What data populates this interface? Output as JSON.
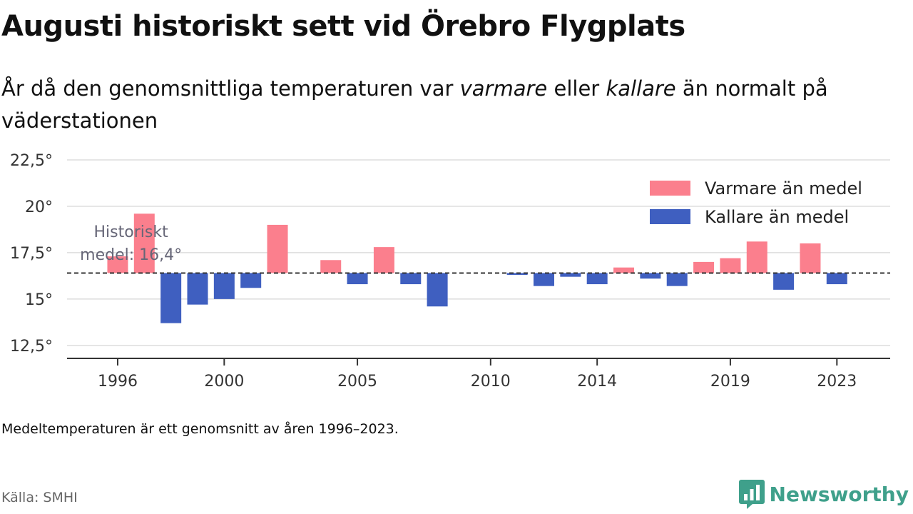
{
  "title": "Augusti historiskt sett vid Örebro Flygplats",
  "subtitle": {
    "part1": "År då den genomsnittliga temperaturen var ",
    "warm_word": "varmare",
    "part2": " eller ",
    "cold_word": "kallare",
    "part3": " än normalt på väderstationen"
  },
  "note": "Medeltemperaturen är ett genomsnitt av åren 1996–2023.",
  "source": "Källa: SMHI",
  "brand": {
    "name": "Newsworthy",
    "color": "#3fa08b",
    "icon": "newsworthy-logo-icon"
  },
  "colors": {
    "warm": "#fb7f8d",
    "cold": "#3f5fc0",
    "grid": "#dddddd",
    "axis": "#333333",
    "mean_line": "#333333"
  },
  "chart_data": {
    "type": "bar",
    "baseline": 16.4,
    "mean_label_line1": "Historiskt",
    "mean_label_line2": "medel: 16,4°",
    "ylim": [
      11.8,
      22.5
    ],
    "yticks": [
      12.5,
      15,
      17.5,
      20,
      22.5
    ],
    "ytick_labels": [
      "12,5°",
      "15°",
      "17,5°",
      "20°",
      "22,5°"
    ],
    "xlim": [
      1994.1,
      2025.0
    ],
    "xticks": [
      1996,
      2000,
      2005,
      2010,
      2014,
      2019,
      2023
    ],
    "xtick_labels": [
      "1996",
      "2000",
      "2005",
      "2010",
      "2014",
      "2019",
      "2023"
    ],
    "legend": {
      "position": "top-right",
      "warm_label": "Varmare än medel",
      "cold_label": "Kallare än medel"
    },
    "series": [
      {
        "year": 1996,
        "value": 17.3
      },
      {
        "year": 1997,
        "value": 19.6
      },
      {
        "year": 1998,
        "value": 13.7
      },
      {
        "year": 1999,
        "value": 14.7
      },
      {
        "year": 2000,
        "value": 15.0
      },
      {
        "year": 2001,
        "value": 15.6
      },
      {
        "year": 2002,
        "value": 19.0
      },
      {
        "year": 2004,
        "value": 17.1
      },
      {
        "year": 2005,
        "value": 15.8
      },
      {
        "year": 2006,
        "value": 17.8
      },
      {
        "year": 2007,
        "value": 15.8
      },
      {
        "year": 2008,
        "value": 14.6
      },
      {
        "year": 2011,
        "value": 16.3
      },
      {
        "year": 2012,
        "value": 15.7
      },
      {
        "year": 2013,
        "value": 16.2
      },
      {
        "year": 2014,
        "value": 15.8
      },
      {
        "year": 2015,
        "value": 16.7
      },
      {
        "year": 2016,
        "value": 16.1
      },
      {
        "year": 2017,
        "value": 15.7
      },
      {
        "year": 2018,
        "value": 17.0
      },
      {
        "year": 2019,
        "value": 17.2
      },
      {
        "year": 2020,
        "value": 18.1
      },
      {
        "year": 2021,
        "value": 15.5
      },
      {
        "year": 2022,
        "value": 18.0
      },
      {
        "year": 2023,
        "value": 15.8
      }
    ]
  }
}
